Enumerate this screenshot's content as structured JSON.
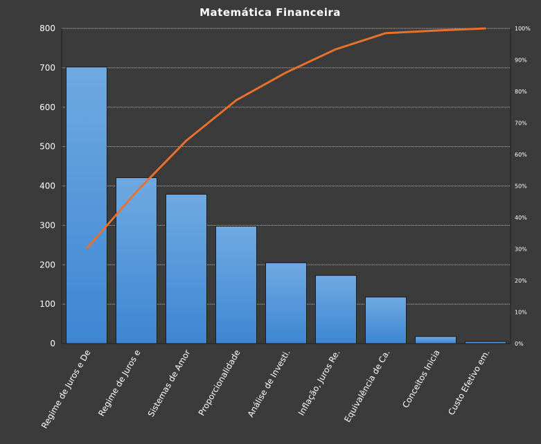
{
  "chart_data": {
    "type": "bar",
    "title": "Matemática Financeira",
    "categories": [
      "Regime de Juros e De",
      "Regime de Juros e",
      "Sistemas de Amor",
      "Proporcionalidade",
      "Análise de Investi.",
      "Inflação, Juros Re.",
      "Equivalência de Ca.",
      "Conceitos Inicia",
      "Custo Efetivo em."
    ],
    "series": [
      {
        "type": "bar",
        "values": [
          702,
          421,
          379,
          298,
          205,
          173,
          118,
          18,
          5
        ],
        "color": "#4a90d9"
      },
      {
        "type": "line",
        "axis": "right",
        "values": [
          30.1,
          48.2,
          64.4,
          77.2,
          86.0,
          93.4,
          98.5,
          99.3,
          100.0
        ],
        "color": "#e8722c"
      }
    ],
    "ylim": [
      0,
      800
    ],
    "yticks": [
      "0",
      "100",
      "200",
      "300",
      "400",
      "500",
      "600",
      "700",
      "800"
    ],
    "y2lim": [
      0,
      100
    ],
    "y2ticks": [
      "0%",
      "10%",
      "20%",
      "30%",
      "40%",
      "50%",
      "60%",
      "70%",
      "80%",
      "90%",
      "100%"
    ],
    "grid": true,
    "colors": {
      "background": "#3b3b3b",
      "plot_background": "#3b3b3b",
      "grid": "#bdbdbd",
      "text": "#ffffff"
    }
  }
}
